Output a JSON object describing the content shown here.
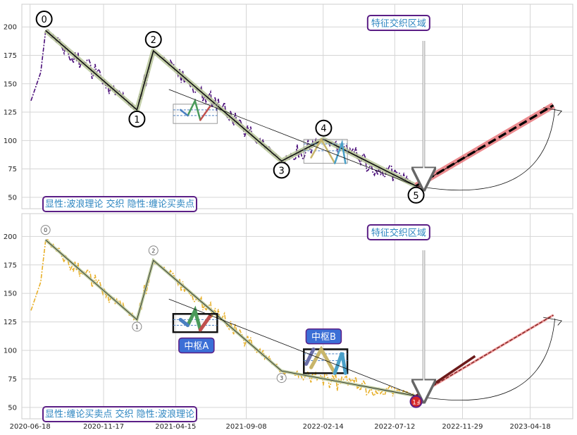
{
  "charts": [
    {
      "panel": "top",
      "legend_text": "显性:波浪理论 交织 隐性:缠论买卖点",
      "zone_label": "特征交织区域",
      "point_labels": [
        "0",
        "1",
        "2",
        "3",
        "4",
        "5"
      ],
      "hubs": [],
      "yticks": [
        "200",
        "175",
        "150",
        "125",
        "100",
        "75",
        "50"
      ]
    },
    {
      "panel": "bottom",
      "legend_text": "显性:缠论买卖点 交织 隐性:波浪理论",
      "zone_label": "特征交织区域",
      "point_labels": [
        "0",
        "1",
        "2",
        "3",
        "1Ⅎ"
      ],
      "hubs": [
        "中枢A",
        "中枢B"
      ],
      "yticks": [
        "200",
        "175",
        "150",
        "125",
        "100",
        "75",
        "50"
      ]
    }
  ],
  "xticks": [
    "2020-06-18",
    "2020-11-17",
    "2021-04-15",
    "2021-09-08",
    "2022-02-14",
    "2022-07-12",
    "2022-11-29",
    "2023-04-18"
  ],
  "colors": {
    "price_top": "#4b0f7a",
    "price_bottom": "#e8b02a",
    "wave_band": "#b9c79a",
    "forecast": "#e8777c",
    "label_text": "#2e86c1",
    "label_border": "#5b1f86",
    "hub_fill": "#3b6fd6"
  },
  "chart_data": [
    {
      "type": "line",
      "ylim": [
        40,
        220
      ],
      "xlim": [
        "2020-06-01",
        "2023-07-15"
      ],
      "series": [],
      "wave_points": [
        {
          "label": "0",
          "x": "2020-07-20",
          "y": 197
        },
        {
          "label": "1",
          "x": "2021-01-25",
          "y": 127
        },
        {
          "label": "2",
          "x": "2021-02-28",
          "y": 179
        },
        {
          "label": "3",
          "x": "2021-11-20",
          "y": 82
        },
        {
          "label": "4",
          "x": "2022-02-15",
          "y": 101
        },
        {
          "label": "5",
          "x": "2022-08-25",
          "y": 60
        }
      ],
      "forecast_target": {
        "x": "2023-06-05",
        "y": 131
      }
    },
    {
      "type": "line",
      "ylim": [
        40,
        220
      ],
      "xlim": [
        "2020-06-01",
        "2023-07-15"
      ],
      "series": [],
      "wave_points": [
        {
          "label": "0",
          "x": "2020-07-20",
          "y": 197
        },
        {
          "label": "1",
          "x": "2021-01-25",
          "y": 127
        },
        {
          "label": "2",
          "x": "2021-02-28",
          "y": 179
        },
        {
          "label": "3",
          "x": "2021-11-20",
          "y": 82
        },
        {
          "label": "1Ⅎ",
          "x": "2022-08-25",
          "y": 60
        }
      ],
      "forecast_target": {
        "x": "2023-06-05",
        "y": 131
      }
    }
  ]
}
